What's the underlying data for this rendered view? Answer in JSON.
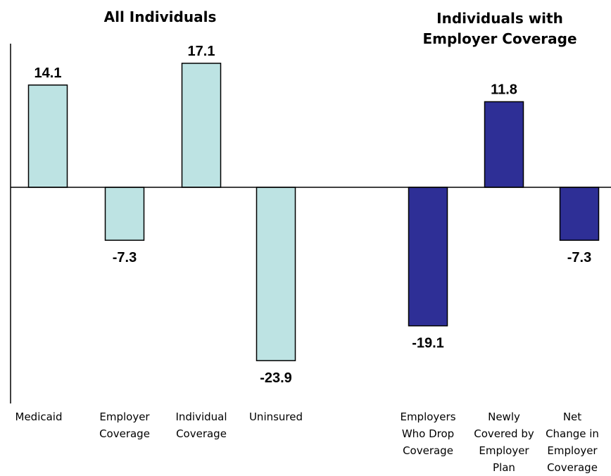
{
  "chart_data": {
    "type": "bar",
    "group_titles": [
      "All Individuals",
      "Individuals with Employer Coverage"
    ],
    "categories": [
      "Medicaid",
      "Employer Coverage",
      "Individual Coverage",
      "Uninsured",
      "Employers Who Drop Coverage",
      "Newly Covered by Employer Plan",
      "Net Change in Employer Coverage"
    ],
    "category_lines": [
      "Medicaid",
      "Employer\nCoverage",
      "Individual\nCoverage",
      "Uninsured",
      "Employers\nWho Drop\nCoverage",
      "Newly\nCovered by\nEmployer\nPlan",
      "Net\nChange in\nEmployer\nCoverage"
    ],
    "values": [
      14.1,
      -7.3,
      17.1,
      -23.9,
      -19.1,
      11.8,
      -7.3
    ],
    "value_labels": [
      "14.1",
      "-7.3",
      "17.1",
      "-23.9",
      "-19.1",
      "11.8",
      "-7.3"
    ],
    "groups": [
      0,
      0,
      0,
      0,
      1,
      1,
      1
    ],
    "group_colors": [
      "#bde3e3",
      "#2e2f96"
    ],
    "title": "",
    "xlabel": "",
    "ylabel": "",
    "ylim": [
      -30,
      20
    ],
    "grid": false,
    "legend": "none"
  }
}
